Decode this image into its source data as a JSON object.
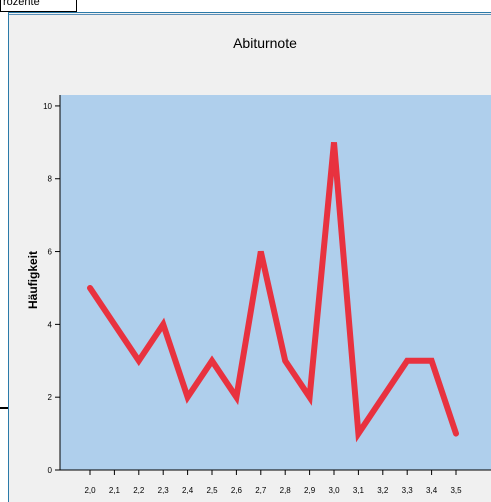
{
  "tab_label": "rozente",
  "colors": {
    "plot_background": "#afcfec",
    "line": "#e8323f",
    "frame_border": "#2b7aa8",
    "frame_background": "#f0f0f0"
  },
  "chart_data": {
    "type": "line",
    "title": "Abiturnote",
    "xlabel": "",
    "ylabel": "Häufigkeit",
    "categories": [
      "2,0",
      "2,1",
      "2,2",
      "2,3",
      "2,4",
      "2,5",
      "2,6",
      "2,7",
      "2,8",
      "2,9",
      "3,0",
      "3,1",
      "3,2",
      "3,3",
      "3,4",
      "3,5"
    ],
    "series": [
      {
        "values": [
          5,
          4,
          3,
          4,
          2,
          3,
          2,
          6,
          3,
          2,
          9,
          1,
          2,
          3,
          3,
          1
        ]
      }
    ],
    "yticks": [
      "0",
      "2",
      "4",
      "6",
      "8",
      "10"
    ],
    "ylim": [
      0,
      10.3
    ],
    "grid": false,
    "legend": "none"
  }
}
